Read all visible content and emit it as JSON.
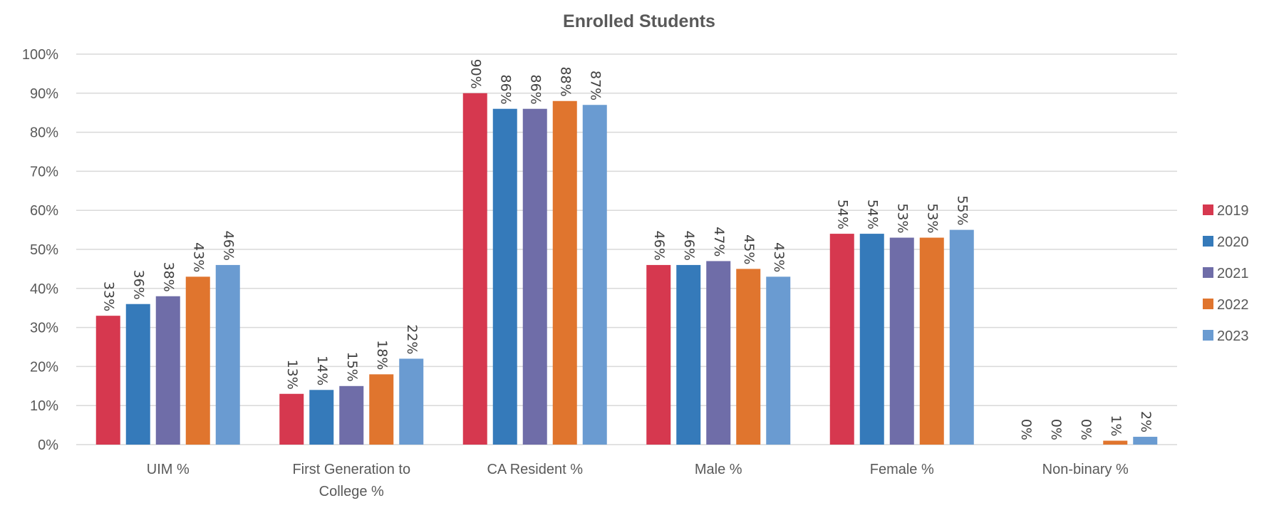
{
  "chart_data": {
    "type": "bar",
    "title": "Enrolled Students",
    "xlabel": "",
    "ylabel": "",
    "ylim": [
      0,
      100
    ],
    "yticks": [
      "0%",
      "10%",
      "20%",
      "30%",
      "40%",
      "50%",
      "60%",
      "70%",
      "80%",
      "90%",
      "100%"
    ],
    "grid": true,
    "legend_position": "right",
    "categories": [
      [
        "UIM %"
      ],
      [
        "First Generation to",
        "College %"
      ],
      [
        "CA Resident %"
      ],
      [
        "Male %"
      ],
      [
        "Female %"
      ],
      [
        "Non-binary %"
      ]
    ],
    "series": [
      {
        "name": "2019",
        "color": "#D6384F",
        "values": [
          33,
          13,
          90,
          46,
          54,
          0
        ],
        "labels": [
          "33%",
          "13%",
          "90%",
          "46%",
          "54%",
          "0%"
        ]
      },
      {
        "name": "2020",
        "color": "#357ABA",
        "values": [
          36,
          14,
          86,
          46,
          54,
          0
        ],
        "labels": [
          "36%",
          "14%",
          "86%",
          "46%",
          "54%",
          "0%"
        ]
      },
      {
        "name": "2021",
        "color": "#6F6DA8",
        "values": [
          38,
          15,
          86,
          47,
          53,
          0
        ],
        "labels": [
          "38%",
          "15%",
          "86%",
          "47%",
          "53%",
          "0%"
        ]
      },
      {
        "name": "2022",
        "color": "#E0752E",
        "values": [
          43,
          18,
          88,
          45,
          53,
          1
        ],
        "labels": [
          "43%",
          "18%",
          "88%",
          "45%",
          "53%",
          "1%"
        ]
      },
      {
        "name": "2023",
        "color": "#6A9BD1",
        "values": [
          46,
          22,
          87,
          43,
          55,
          2
        ],
        "labels": [
          "46%",
          "22%",
          "87%",
          "43%",
          "55%",
          "2%"
        ]
      }
    ]
  }
}
